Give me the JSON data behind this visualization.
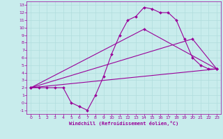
{
  "xlabel": "Windchill (Refroidissement éolien,°C)",
  "xlim": [
    -0.5,
    23.5
  ],
  "ylim": [
    -1.5,
    13.5
  ],
  "xticks": [
    0,
    1,
    2,
    3,
    4,
    5,
    6,
    7,
    8,
    9,
    10,
    11,
    12,
    13,
    14,
    15,
    16,
    17,
    18,
    19,
    20,
    21,
    22,
    23
  ],
  "yticks": [
    -1,
    0,
    1,
    2,
    3,
    4,
    5,
    6,
    7,
    8,
    9,
    10,
    11,
    12,
    13
  ],
  "bg_color": "#c8ecec",
  "line_color": "#990099",
  "grid_color": "#b0dddd",
  "lines": [
    {
      "x": [
        0,
        1,
        2,
        3,
        4,
        5,
        6,
        7,
        8,
        9,
        10,
        11,
        12,
        13,
        14,
        15,
        16,
        17,
        18,
        19,
        20,
        21,
        22,
        23
      ],
      "y": [
        2,
        2,
        2,
        2,
        2,
        0,
        -0.5,
        -1,
        1,
        3.5,
        6.5,
        9,
        11,
        11.5,
        12.7,
        12.5,
        12,
        12,
        11,
        8.5,
        6,
        5,
        4.5,
        4.5
      ]
    },
    {
      "x": [
        0,
        23
      ],
      "y": [
        2,
        4.5
      ]
    },
    {
      "x": [
        0,
        14,
        23
      ],
      "y": [
        2,
        9.8,
        4.5
      ]
    },
    {
      "x": [
        0,
        20,
        23
      ],
      "y": [
        2,
        8.5,
        4.5
      ]
    }
  ]
}
